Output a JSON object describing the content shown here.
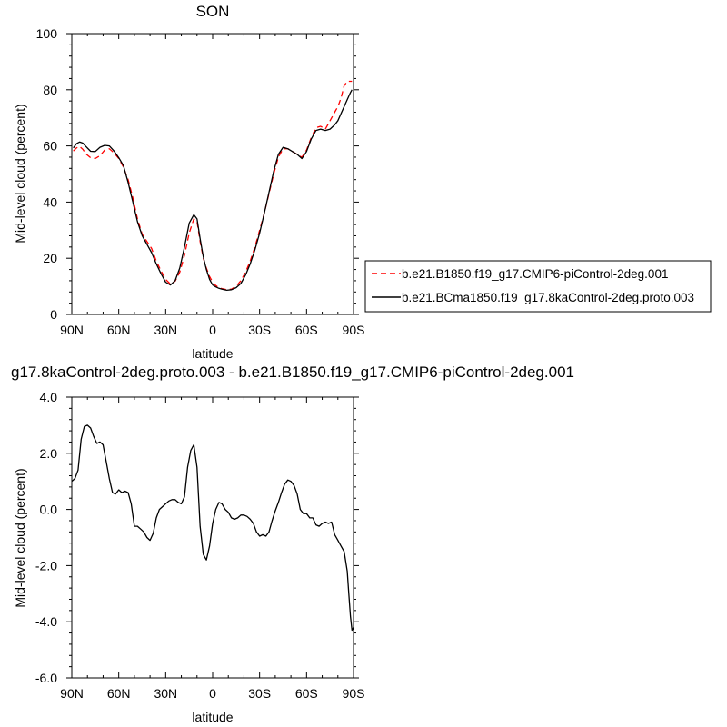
{
  "chart_data": [
    {
      "type": "line",
      "title": "SON",
      "xlabel": "latitude",
      "ylabel": "Mid-level cloud (percent)",
      "xlim": [
        -90,
        90
      ],
      "ylim": [
        0,
        100
      ],
      "x_ticks": [
        -90,
        -60,
        -30,
        0,
        30,
        60,
        90
      ],
      "x_tick_labels": [
        "90N",
        "60N",
        "30N",
        "0",
        "30S",
        "60S",
        "90S"
      ],
      "y_ticks": [
        0,
        20,
        40,
        60,
        80,
        100
      ],
      "y_tick_labels": [
        "0",
        "20",
        "40",
        "60",
        "80",
        "100"
      ],
      "legend_position": "right",
      "series": [
        {
          "name": "b.e21.B1850.f19_g17.CMIP6-piControl-2deg.001",
          "color": "#ff0000",
          "dash": "dashed",
          "x": [
            -89,
            -87,
            -85,
            -83,
            -81,
            -78,
            -75,
            -72,
            -69,
            -66,
            -63,
            -60,
            -57,
            -54,
            -51,
            -48,
            -45,
            -42,
            -39,
            -36,
            -33,
            -30,
            -27,
            -24,
            -21,
            -18,
            -15,
            -12,
            -10,
            -8,
            -6,
            -4,
            -2,
            0,
            2,
            4,
            6,
            9,
            12,
            15,
            18,
            21,
            24,
            27,
            30,
            33,
            36,
            39,
            42,
            45,
            48,
            51,
            54,
            57,
            60,
            63,
            66,
            69,
            72,
            75,
            78,
            80,
            82,
            84,
            86,
            88,
            89
          ],
          "values": [
            58.2,
            59.3,
            59.8,
            58.8,
            57.2,
            55.8,
            55.5,
            56.5,
            58.5,
            59.0,
            57.5,
            55.5,
            52.5,
            48.0,
            41.5,
            34.0,
            28.5,
            26.0,
            23.5,
            19.0,
            15.5,
            12.5,
            10.8,
            11.8,
            15.0,
            21.0,
            29.0,
            34.0,
            33.0,
            26.0,
            20.0,
            16.5,
            13.5,
            11.5,
            10.3,
            9.5,
            9.2,
            8.8,
            9.0,
            10.0,
            12.0,
            15.0,
            19.0,
            24.0,
            30.0,
            36.0,
            43.0,
            50.0,
            56.0,
            59.0,
            59.0,
            58.0,
            57.0,
            56.0,
            58.5,
            63.0,
            66.5,
            67.0,
            66.0,
            69.0,
            72.0,
            74.0,
            77.0,
            81.5,
            83.0,
            83.0,
            83.0
          ]
        },
        {
          "name": "b.e21.BCma1850.f19_g17.8kaControl-2deg.proto.003",
          "color": "#000000",
          "dash": "solid",
          "x": [
            -89,
            -87,
            -85,
            -83,
            -81,
            -78,
            -75,
            -72,
            -69,
            -66,
            -63,
            -60,
            -57,
            -54,
            -51,
            -48,
            -45,
            -42,
            -39,
            -36,
            -33,
            -30,
            -27,
            -24,
            -21,
            -18,
            -15,
            -12,
            -10,
            -8,
            -6,
            -4,
            -2,
            0,
            2,
            4,
            6,
            9,
            12,
            15,
            18,
            21,
            24,
            27,
            30,
            33,
            36,
            39,
            42,
            45,
            48,
            51,
            54,
            57,
            60,
            63,
            66,
            69,
            72,
            75,
            78,
            80,
            82,
            84,
            86,
            88,
            89
          ],
          "values": [
            59.3,
            60.8,
            61.4,
            61.0,
            59.8,
            58.1,
            58.0,
            59.5,
            60.2,
            60.0,
            58.2,
            55.8,
            53.0,
            47.0,
            40.0,
            33.0,
            28.0,
            25.0,
            22.0,
            18.0,
            14.5,
            11.5,
            10.5,
            12.0,
            16.5,
            24.0,
            32.5,
            35.5,
            34.0,
            27.0,
            20.5,
            16.0,
            12.5,
            10.5,
            9.8,
            9.3,
            9.0,
            8.6,
            8.8,
            9.5,
            11.0,
            14.0,
            18.0,
            23.0,
            29.0,
            36.0,
            43.5,
            51.0,
            57.0,
            59.5,
            59.0,
            58.0,
            57.0,
            55.5,
            58.0,
            62.5,
            65.5,
            66.0,
            65.5,
            66.0,
            67.5,
            69.0,
            71.5,
            74.0,
            76.5,
            79.0,
            80.0
          ]
        }
      ]
    },
    {
      "type": "line",
      "title": "g17.8kaControl-2deg.proto.003 - b.e21.B1850.f19_g17.CMIP6-piControl-2deg.001",
      "xlabel": "latitude",
      "ylabel": "Mid-level cloud (percent)",
      "xlim": [
        -90,
        90
      ],
      "ylim": [
        -6,
        4
      ],
      "x_ticks": [
        -90,
        -60,
        -30,
        0,
        30,
        60,
        90
      ],
      "x_tick_labels": [
        "90N",
        "60N",
        "30N",
        "0",
        "30S",
        "60S",
        "90S"
      ],
      "y_ticks": [
        -6,
        -4,
        -2,
        0,
        2,
        4
      ],
      "y_tick_labels": [
        "-6.0",
        "-4.0",
        "-2.0",
        "0.0",
        "2.0",
        "4.0"
      ],
      "series": [
        {
          "color": "#000000",
          "dash": "solid",
          "x": [
            -90,
            -88,
            -86,
            -84,
            -82,
            -80,
            -78,
            -76,
            -74,
            -72,
            -70,
            -68,
            -66,
            -64,
            -62,
            -60,
            -58,
            -56,
            -54,
            -52,
            -50,
            -48,
            -46,
            -44,
            -42,
            -40,
            -38,
            -36,
            -34,
            -32,
            -30,
            -28,
            -26,
            -24,
            -22,
            -20,
            -18,
            -16,
            -14,
            -12,
            -10,
            -8,
            -6,
            -4,
            -2,
            0,
            2,
            4,
            6,
            8,
            10,
            12,
            14,
            16,
            18,
            20,
            22,
            24,
            26,
            28,
            30,
            32,
            34,
            36,
            38,
            40,
            42,
            44,
            46,
            48,
            50,
            52,
            54,
            56,
            58,
            60,
            62,
            64,
            66,
            68,
            70,
            72,
            74,
            76,
            78,
            80,
            82,
            84,
            86,
            87,
            88,
            89,
            90
          ],
          "values": [
            1.0,
            1.1,
            1.4,
            2.5,
            2.95,
            3.0,
            2.9,
            2.6,
            2.35,
            2.4,
            2.3,
            1.7,
            1.1,
            0.6,
            0.55,
            0.7,
            0.6,
            0.65,
            0.6,
            0.2,
            -0.6,
            -0.6,
            -0.7,
            -0.8,
            -1.0,
            -1.1,
            -0.85,
            -0.3,
            0.0,
            0.1,
            0.2,
            0.3,
            0.35,
            0.35,
            0.25,
            0.2,
            0.45,
            1.5,
            2.1,
            2.3,
            1.5,
            -0.6,
            -1.6,
            -1.8,
            -1.3,
            -0.5,
            0.0,
            0.25,
            0.2,
            0.0,
            -0.1,
            -0.3,
            -0.35,
            -0.3,
            -0.2,
            -0.2,
            -0.25,
            -0.35,
            -0.5,
            -0.8,
            -0.95,
            -0.9,
            -0.95,
            -0.8,
            -0.4,
            -0.05,
            0.25,
            0.6,
            0.9,
            1.05,
            1.0,
            0.85,
            0.55,
            0.0,
            -0.15,
            -0.15,
            -0.3,
            -0.3,
            -0.55,
            -0.6,
            -0.5,
            -0.45,
            -0.5,
            -0.45,
            -0.9,
            -1.1,
            -1.3,
            -1.5,
            -2.2,
            -3.0,
            -3.8,
            -4.3,
            -4.2
          ]
        }
      ]
    }
  ]
}
